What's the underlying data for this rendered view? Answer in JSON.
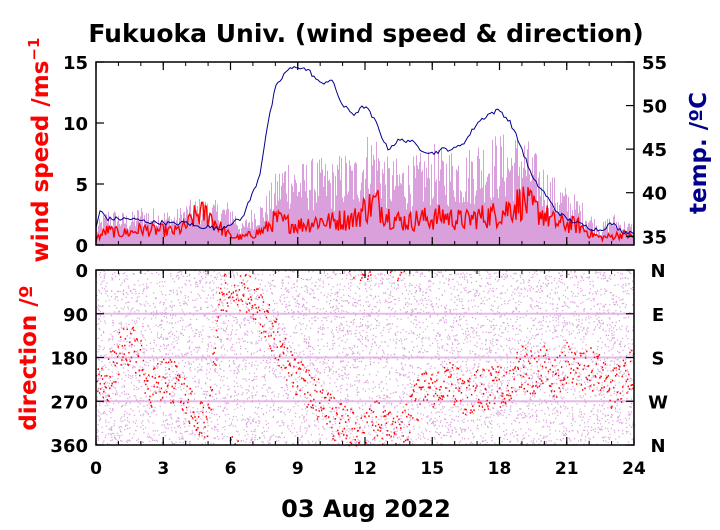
{
  "title": "Fukuoka Univ. (wind speed & direction)",
  "date_label": "03 Aug 2022",
  "colors": {
    "wind": "#ff0000",
    "wind_gust": "#d9a0dc",
    "temp": "#00008b",
    "axis": "#000000",
    "grid": "#d9a0dc"
  },
  "chart_data": [
    {
      "type": "line",
      "panel": "wind speed",
      "xlabel": "",
      "ylabel": "wind speed /ms",
      "ylabel_superscript": "−1",
      "ylim": [
        0,
        15
      ],
      "y_ticks": [
        0,
        5,
        10,
        15
      ],
      "x_ticks": [
        0,
        3,
        6,
        9,
        12,
        15,
        18,
        21,
        24
      ],
      "xlim": [
        0,
        24
      ],
      "y2label": "temp. /ºC",
      "y2lim": [
        34,
        55
      ],
      "y2_ticks": [
        35,
        40,
        45,
        50,
        55
      ],
      "wind_mean": {
        "x": [
          0,
          0.5,
          1,
          1.5,
          2,
          2.5,
          3,
          3.5,
          4,
          4.5,
          5,
          5.5,
          6,
          6.5,
          7,
          7.5,
          8,
          8.5,
          9,
          9.5,
          10,
          10.5,
          11,
          11.5,
          12,
          12.5,
          13,
          13.5,
          14,
          14.5,
          15,
          15.5,
          16,
          16.5,
          17,
          17.5,
          18,
          18.5,
          19,
          19.5,
          20,
          20.5,
          21,
          21.5,
          22,
          22.5,
          23,
          23.5,
          24
        ],
        "y": [
          0.5,
          1.2,
          1.0,
          1.0,
          1.3,
          1.2,
          1.2,
          1.1,
          1.5,
          2.5,
          2.6,
          1.5,
          0.7,
          0.6,
          0.9,
          1.2,
          2.1,
          1.8,
          1.6,
          1.8,
          2.0,
          1.9,
          2.1,
          2.1,
          3.0,
          3.5,
          2.5,
          2.0,
          1.9,
          2.2,
          2.1,
          2.4,
          2.1,
          2.0,
          2.3,
          2.4,
          2.6,
          3.1,
          3.6,
          3.0,
          2.5,
          1.8,
          1.7,
          1.6,
          1.0,
          0.6,
          0.7,
          0.9,
          0.6
        ]
      },
      "wind_max": {
        "x": [
          0,
          0.5,
          1,
          1.5,
          2,
          2.5,
          3,
          3.5,
          4,
          4.5,
          5,
          5.5,
          6,
          6.5,
          7,
          7.5,
          8,
          8.5,
          9,
          9.5,
          10,
          10.5,
          11,
          11.5,
          12,
          12.5,
          13,
          13.5,
          14,
          14.5,
          15,
          15.5,
          16,
          16.5,
          17,
          17.5,
          18,
          18.5,
          19,
          19.5,
          20,
          20.5,
          21,
          21.5,
          22,
          22.5,
          23,
          23.5,
          24
        ],
        "y": [
          1.5,
          2.6,
          2.4,
          2.2,
          2.8,
          2.6,
          2.5,
          2.4,
          3.0,
          3.3,
          3.2,
          3.0,
          3.1,
          1.5,
          2.8,
          3.2,
          5.0,
          6.5,
          5.6,
          6.0,
          6.0,
          5.8,
          6.5,
          6.2,
          7.8,
          8.0,
          6.0,
          6.0,
          6.0,
          6.4,
          7.0,
          6.6,
          7.0,
          6.6,
          7.5,
          7.6,
          7.8,
          7.6,
          8.0,
          6.6,
          5.6,
          4.6,
          4.0,
          3.3,
          2.4,
          1.4,
          2.3,
          1.8,
          1.5
        ]
      },
      "temperature": {
        "x": [
          0,
          0.2,
          0.5,
          1,
          1.5,
          2,
          2.5,
          3,
          3.5,
          4,
          4.5,
          5,
          5.5,
          6,
          6.5,
          7,
          7.3,
          7.6,
          8,
          8.5,
          9,
          9.5,
          10,
          10.5,
          11,
          11.5,
          12,
          12.5,
          13,
          13.5,
          14,
          14.5,
          15,
          15.5,
          16,
          16.5,
          17,
          17.5,
          18,
          18.5,
          19,
          19.5,
          20,
          20.5,
          21,
          21.5,
          22,
          22.5,
          23,
          23.5,
          24
        ],
        "y": [
          36,
          38,
          37,
          37,
          37,
          36.8,
          36.6,
          36.6,
          36.4,
          36.6,
          36.1,
          36.1,
          35.8,
          36.5,
          37.0,
          40.0,
          42,
          47,
          52,
          54,
          54.5,
          54,
          52.5,
          53,
          50,
          49,
          50,
          48,
          45,
          46,
          46,
          45,
          44.5,
          45,
          45,
          46,
          48,
          49,
          49.5,
          48,
          45,
          41.5,
          40,
          38,
          37,
          36.5,
          36,
          35.7,
          36.5,
          35.5,
          35.5
        ]
      }
    },
    {
      "type": "scatter",
      "panel": "direction",
      "ylabel": "direction /º",
      "ylim": [
        0,
        360
      ],
      "y_ticks": [
        0,
        90,
        180,
        270,
        360
      ],
      "x_ticks": [
        0,
        3,
        6,
        9,
        12,
        15,
        18,
        21,
        24
      ],
      "xlim": [
        0,
        24
      ],
      "compass_labels": [
        "N",
        "E",
        "S",
        "W",
        "N"
      ],
      "direction_main": {
        "x": [
          0,
          0.5,
          1,
          1.5,
          2,
          2.5,
          3,
          3.5,
          4,
          4.5,
          5,
          5.5,
          6,
          6.5,
          7,
          7.5,
          8,
          8.5,
          9,
          9.5,
          10,
          10.5,
          11,
          11.5,
          12,
          12.5,
          13,
          13.5,
          14,
          14.5,
          15,
          15.5,
          16,
          16.5,
          17,
          17.5,
          18,
          18.5,
          19,
          19.5,
          20,
          20.5,
          21,
          21.5,
          22,
          22.5,
          23,
          23.5,
          24
        ],
        "y": [
          240,
          230,
          170,
          150,
          180,
          250,
          220,
          230,
          260,
          300,
          320,
          80,
          20,
          40,
          60,
          90,
          140,
          180,
          220,
          240,
          270,
          300,
          320,
          330,
          340,
          310,
          330,
          340,
          300,
          250,
          240,
          230,
          230,
          260,
          250,
          240,
          240,
          220,
          200,
          210,
          200,
          220,
          190,
          200,
          200,
          210,
          250,
          230,
          200
        ]
      }
    }
  ],
  "x_ticklabels": [
    "0",
    "3",
    "6",
    "9",
    "12",
    "15",
    "18",
    "21",
    "24"
  ],
  "wind_ticklabels": [
    "0",
    "5",
    "10",
    "15"
  ],
  "temp_ticklabels": [
    "35",
    "40",
    "45",
    "50",
    "55"
  ],
  "dir_ticklabels": [
    "0",
    "90",
    "180",
    "270",
    "360"
  ]
}
